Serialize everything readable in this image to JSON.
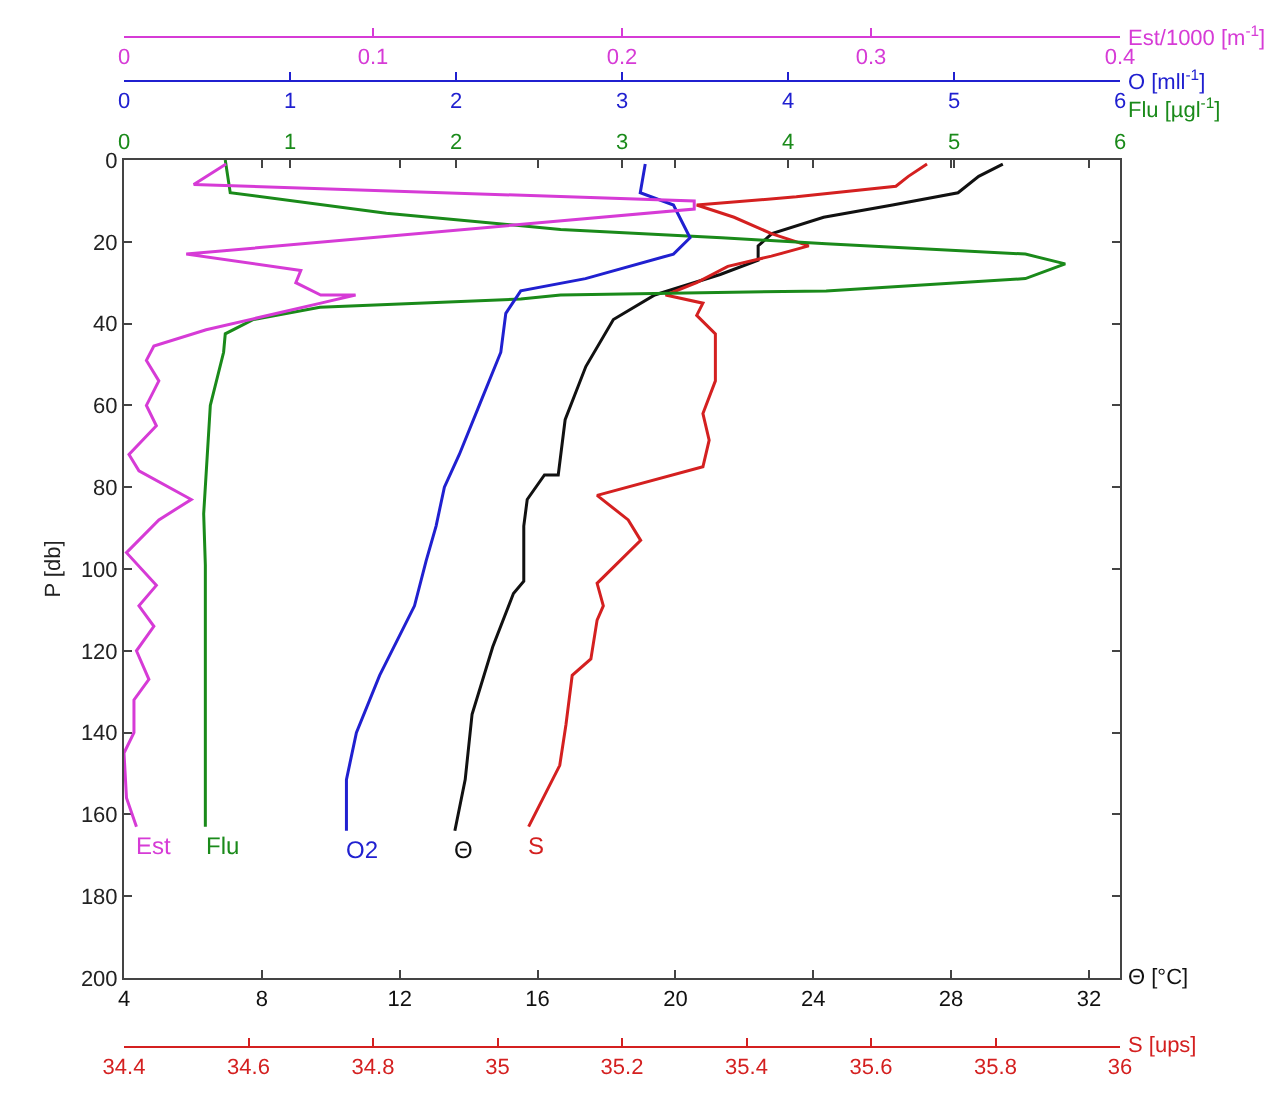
{
  "chart_data": [
    {
      "type": "line",
      "ylabel": "P [db]",
      "ylim": [
        200,
        0
      ],
      "yticks": [
        0,
        20,
        40,
        60,
        80,
        100,
        120,
        140,
        160,
        180,
        200
      ],
      "xlabel": "Θ [°C]",
      "xlim": [
        4,
        32.9
      ],
      "xticks": [
        4,
        8,
        12,
        16,
        20,
        24,
        28,
        32
      ],
      "x2label": "S [ups]",
      "x2lim": [
        34.4,
        36
      ],
      "x2ticks": [
        34.4,
        34.6,
        34.8,
        35,
        35.2,
        35.4,
        35.6,
        35.8,
        36
      ],
      "grid": false,
      "legend": false,
      "marker": "none",
      "line_style": "solid",
      "series": [
        {
          "name": "Θ",
          "color": "#111111",
          "x": [
            29.5,
            28.8,
            28.2,
            26.3,
            24.3,
            22.8,
            22.4,
            22.4,
            21.3,
            19.4,
            18.2,
            17.4,
            16.8,
            16.6,
            16.2,
            15.7,
            15.6,
            15.6,
            15.3,
            14.7,
            14.1,
            13.9,
            13.6
          ],
          "values": [
            1,
            4,
            8,
            11,
            14,
            18,
            21,
            24.5,
            28,
            33,
            39,
            50.5,
            63.5,
            77,
            77,
            83,
            89.5,
            103,
            106,
            119,
            135.5,
            151.5,
            164
          ]
        },
        {
          "name": "S",
          "color": "#d42020",
          "axis": "x2",
          "x": [
            35.69,
            35.66,
            35.64,
            35.48,
            35.32,
            35.38,
            35.44,
            35.5,
            35.44,
            35.37,
            35.32,
            35.27,
            35.33,
            35.32,
            35.35,
            35.35,
            35.33,
            35.34,
            35.33,
            35.16,
            35.21,
            35.23,
            35.16,
            35.17,
            35.16,
            35.15,
            35.12,
            35.11,
            35.1,
            35.05
          ],
          "values": [
            1,
            4,
            6.4,
            9,
            11,
            14,
            18,
            21,
            23.5,
            26,
            30,
            33,
            35,
            38,
            42.5,
            54,
            62,
            68.5,
            75,
            82,
            88,
            93,
            103.5,
            109,
            112.5,
            122,
            126,
            138,
            148,
            163
          ]
        }
      ]
    },
    {
      "type": "line",
      "ylim": [
        200,
        0
      ],
      "tick_labels": "x",
      "xlabel": "Flu [µgl$^{-1}$]",
      "xlim": [
        0,
        6
      ],
      "xticks": [
        0,
        1,
        2,
        3,
        4,
        5,
        6
      ],
      "x2label": "O [mll$^{-1}$]",
      "x2lim": [
        0,
        6
      ],
      "x2ticks": [
        0,
        1,
        2,
        3,
        4,
        5,
        6
      ],
      "grid": false,
      "legend": false,
      "marker": "none",
      "line_style": "solid",
      "series": [
        {
          "name": "Flu",
          "color": "#1a8a1a",
          "x": [
            0.61,
            0.64,
            1.58,
            2.63,
            3.6,
            4.23,
            5.43,
            5.67,
            5.43,
            4.23,
            2.63,
            2.39,
            1.18,
            0.78,
            0.61,
            0.6,
            0.52,
            0.48,
            0.49,
            0.49
          ],
          "values": [
            0,
            8,
            13,
            17,
            19,
            20.5,
            23,
            25.4,
            29,
            32,
            33,
            34,
            36,
            39,
            42.5,
            47,
            60,
            86.5,
            99,
            163
          ]
        },
        {
          "name": "O2",
          "color": "#2020d0",
          "axis": "x2",
          "x": [
            3.14,
            3.11,
            3.31,
            3.41,
            3.31,
            2.78,
            2.39,
            2.3,
            2.27,
            2.14,
            2.02,
            1.93,
            1.88,
            1.82,
            1.75,
            1.54,
            1.4,
            1.34,
            1.34
          ],
          "values": [
            1,
            8,
            11,
            19,
            23,
            29,
            32,
            37.5,
            47,
            60,
            72,
            80,
            89.5,
            98,
            109,
            126,
            140,
            151.5,
            164
          ]
        }
      ]
    },
    {
      "type": "line",
      "ylim": [
        200,
        0
      ],
      "tick_labels": "x",
      "xlabel": "Est/1000 [m$^{-1}$]",
      "xlim": [
        0,
        0.4
      ],
      "xticks": [
        0,
        0.1,
        0.2,
        0.3,
        0.4
      ],
      "grid": false,
      "legend": false,
      "marker": "none",
      "line_style": "solid",
      "series": [
        {
          "name": "Est",
          "color": "#d63bd6",
          "x": [
            0.041,
            0.028,
            0.229,
            0.229,
            0.025,
            0.071,
            0.069,
            0.079,
            0.093,
            0.079,
            0.033,
            0.012,
            0.009,
            0.014,
            0.009,
            0.013,
            0.002,
            0.006,
            0.027,
            0.014,
            0.001,
            0.013,
            0.006,
            0.012,
            0.005,
            0.01,
            0.004,
            0.004,
            0,
            0.001,
            0.005
          ],
          "values": [
            1,
            6,
            10,
            12,
            23,
            27,
            30,
            33,
            33,
            35,
            41.5,
            45.5,
            49,
            54,
            60,
            65,
            72,
            76,
            83,
            88,
            96,
            104,
            109,
            114,
            120,
            127,
            132,
            140,
            145,
            156,
            163
          ]
        }
      ]
    }
  ]
}
